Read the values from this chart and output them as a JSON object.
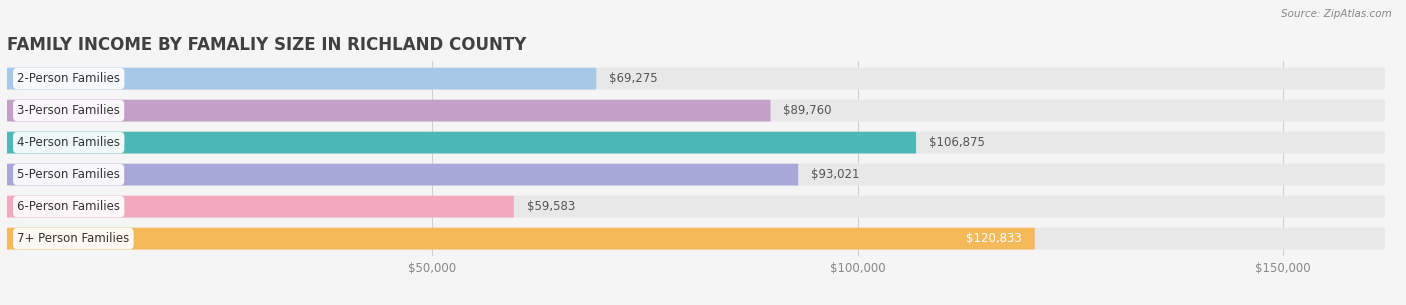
{
  "title": "FAMILY INCOME BY FAMALIY SIZE IN RICHLAND COUNTY",
  "source": "Source: ZipAtlas.com",
  "categories": [
    "2-Person Families",
    "3-Person Families",
    "4-Person Families",
    "5-Person Families",
    "6-Person Families",
    "7+ Person Families"
  ],
  "values": [
    69275,
    89760,
    106875,
    93021,
    59583,
    120833
  ],
  "bar_colors": [
    "#a8c8e8",
    "#c4a0c8",
    "#4db8b8",
    "#a8a8d8",
    "#f4a8be",
    "#f5b95a"
  ],
  "value_label_inside": [
    false,
    false,
    false,
    false,
    false,
    true
  ],
  "value_label_color_outside": "#555555",
  "value_label_color_inside": "#ffffff",
  "background_color": "#f5f5f5",
  "bar_bg_color": "#e8e8e8",
  "plot_bg_color": "#f5f5f5",
  "xlim_max": 162000,
  "xticks": [
    50000,
    100000,
    150000
  ],
  "xtick_labels": [
    "$50,000",
    "$100,000",
    "$150,000"
  ],
  "title_fontsize": 12,
  "tick_fontsize": 8.5,
  "label_fontsize": 8.5,
  "value_fontsize": 8.5,
  "bar_height": 0.68,
  "title_color": "#404040",
  "grid_color": "#d0d0d0",
  "source_color": "#888888"
}
